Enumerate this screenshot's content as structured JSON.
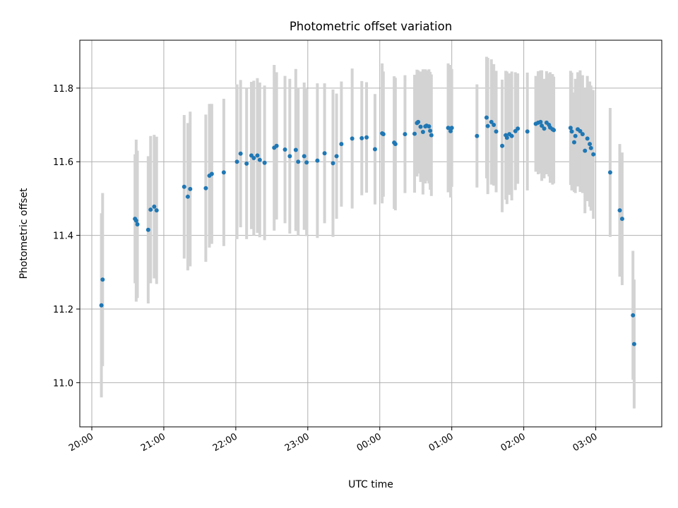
{
  "chart_data": {
    "type": "scatter",
    "title": "Photometric offset variation",
    "xlabel": "UTC time",
    "ylabel": "Photometric offset",
    "xlim": [
      "2000-01-01T19:50",
      "2000-01-02T03:55"
    ],
    "ylim": [
      10.88,
      11.93
    ],
    "grid": true,
    "x_tick_labels": [
      "20:00",
      "21:00",
      "22:00",
      "23:00",
      "00:00",
      "01:00",
      "02:00",
      "03:00"
    ],
    "y_tick_values": [
      11.0,
      11.2,
      11.4,
      11.6,
      11.8
    ],
    "y_tick_labels": [
      "11.0",
      "11.2",
      "11.4",
      "11.6",
      "11.8"
    ],
    "colors": {
      "points": "#1f77b4",
      "error_bars": "#d3d3d3",
      "grid": "#b0b0b0"
    },
    "x": [
      "2000-01-01T20:08",
      "2000-01-01T20:09",
      "2000-01-01T20:36",
      "2000-01-01T20:37",
      "2000-01-01T20:38",
      "2000-01-01T20:47",
      "2000-01-01T20:49",
      "2000-01-01T20:52",
      "2000-01-01T20:54",
      "2000-01-01T21:17",
      "2000-01-01T21:20",
      "2000-01-01T21:22",
      "2000-01-01T21:35",
      "2000-01-01T21:38",
      "2000-01-01T21:40",
      "2000-01-01T21:50",
      "2000-01-01T22:01",
      "2000-01-01T22:04",
      "2000-01-01T22:09",
      "2000-01-01T22:13",
      "2000-01-01T22:15",
      "2000-01-01T22:18",
      "2000-01-01T22:20",
      "2000-01-01T22:24",
      "2000-01-01T22:32",
      "2000-01-01T22:34",
      "2000-01-01T22:41",
      "2000-01-01T22:45",
      "2000-01-01T22:50",
      "2000-01-01T22:52",
      "2000-01-01T22:57",
      "2000-01-01T22:59",
      "2000-01-01T23:08",
      "2000-01-01T23:14",
      "2000-01-01T23:21",
      "2000-01-01T23:24",
      "2000-01-01T23:28",
      "2000-01-01T23:37",
      "2000-01-01T23:45",
      "2000-01-01T23:49",
      "2000-01-01T23:56",
      "2000-01-02T00:02",
      "2000-01-02T00:03",
      "2000-01-02T00:12",
      "2000-01-02T00:13",
      "2000-01-02T00:21",
      "2000-01-02T00:29",
      "2000-01-02T00:31",
      "2000-01-02T00:32",
      "2000-01-02T00:34",
      "2000-01-02T00:36",
      "2000-01-02T00:38",
      "2000-01-02T00:39",
      "2000-01-02T00:41",
      "2000-01-02T00:42",
      "2000-01-02T00:43",
      "2000-01-02T00:57",
      "2000-01-02T00:59",
      "2000-01-02T01:00",
      "2000-01-02T01:21",
      "2000-01-02T01:29",
      "2000-01-02T01:30",
      "2000-01-02T01:33",
      "2000-01-02T01:35",
      "2000-01-02T01:37",
      "2000-01-02T01:42",
      "2000-01-02T01:45",
      "2000-01-02T01:46",
      "2000-01-02T01:48",
      "2000-01-02T01:50",
      "2000-01-02T01:53",
      "2000-01-02T01:55",
      "2000-01-02T02:03",
      "2000-01-02T02:10",
      "2000-01-02T02:12",
      "2000-01-02T02:14",
      "2000-01-02T02:15",
      "2000-01-02T02:17",
      "2000-01-02T02:19",
      "2000-01-02T02:21",
      "2000-01-02T02:22",
      "2000-01-02T02:24",
      "2000-01-02T02:25",
      "2000-01-02T02:39",
      "2000-01-02T02:40",
      "2000-01-02T02:42",
      "2000-01-02T02:43",
      "2000-01-02T02:45",
      "2000-01-02T02:47",
      "2000-01-02T02:49",
      "2000-01-02T02:51",
      "2000-01-02T02:53",
      "2000-01-02T02:55",
      "2000-01-02T02:56",
      "2000-01-02T02:58",
      "2000-01-02T03:12",
      "2000-01-02T03:20",
      "2000-01-02T03:22",
      "2000-01-02T03:31",
      "2000-01-02T03:32"
    ],
    "y": [
      11.21,
      11.28,
      11.445,
      11.44,
      11.43,
      11.415,
      11.47,
      11.478,
      11.468,
      11.532,
      11.505,
      11.526,
      11.528,
      11.562,
      11.567,
      11.571,
      11.6,
      11.622,
      11.595,
      11.617,
      11.61,
      11.617,
      11.605,
      11.597,
      11.638,
      11.643,
      11.633,
      11.615,
      11.632,
      11.6,
      11.615,
      11.598,
      11.603,
      11.623,
      11.596,
      11.615,
      11.648,
      11.663,
      11.664,
      11.666,
      11.634,
      11.677,
      11.675,
      11.652,
      11.648,
      11.675,
      11.676,
      11.705,
      11.708,
      11.695,
      11.681,
      11.696,
      11.698,
      11.696,
      11.684,
      11.672,
      11.692,
      11.683,
      11.692,
      11.67,
      11.72,
      11.697,
      11.708,
      11.7,
      11.682,
      11.643,
      11.672,
      11.665,
      11.675,
      11.67,
      11.683,
      11.69,
      11.682,
      11.703,
      11.706,
      11.708,
      11.698,
      11.69,
      11.706,
      11.7,
      11.693,
      11.688,
      11.686,
      11.692,
      11.682,
      11.653,
      11.67,
      11.688,
      11.683,
      11.675,
      11.63,
      11.663,
      11.648,
      11.637,
      11.62,
      11.571,
      11.468,
      11.445,
      11.183,
      11.105
    ],
    "yerr": [
      0.25,
      0.235,
      0.175,
      0.22,
      0.2,
      0.2,
      0.2,
      0.195,
      0.2,
      0.195,
      0.2,
      0.21,
      0.2,
      0.195,
      0.19,
      0.2,
      0.21,
      0.2,
      0.205,
      0.2,
      0.21,
      0.21,
      0.21,
      0.21,
      0.225,
      0.2,
      0.2,
      0.21,
      0.22,
      0.2,
      0.2,
      0.2,
      0.21,
      0.19,
      0.2,
      0.17,
      0.17,
      0.19,
      0.155,
      0.15,
      0.15,
      0.19,
      0.17,
      0.18,
      0.18,
      0.16,
      0.16,
      0.145,
      0.14,
      0.15,
      0.17,
      0.155,
      0.15,
      0.155,
      0.16,
      0.165,
      0.175,
      0.18,
      0.16,
      0.14,
      0.165,
      0.185,
      0.17,
      0.165,
      0.165,
      0.18,
      0.175,
      0.18,
      0.165,
      0.175,
      0.16,
      0.15,
      0.16,
      0.13,
      0.14,
      0.14,
      0.15,
      0.135,
      0.14,
      0.14,
      0.15,
      0.15,
      0.145,
      0.155,
      0.16,
      0.135,
      0.155,
      0.155,
      0.165,
      0.16,
      0.17,
      0.17,
      0.17,
      0.17,
      0.175,
      0.175,
      0.18,
      0.18,
      0.175,
      0.175
    ]
  }
}
